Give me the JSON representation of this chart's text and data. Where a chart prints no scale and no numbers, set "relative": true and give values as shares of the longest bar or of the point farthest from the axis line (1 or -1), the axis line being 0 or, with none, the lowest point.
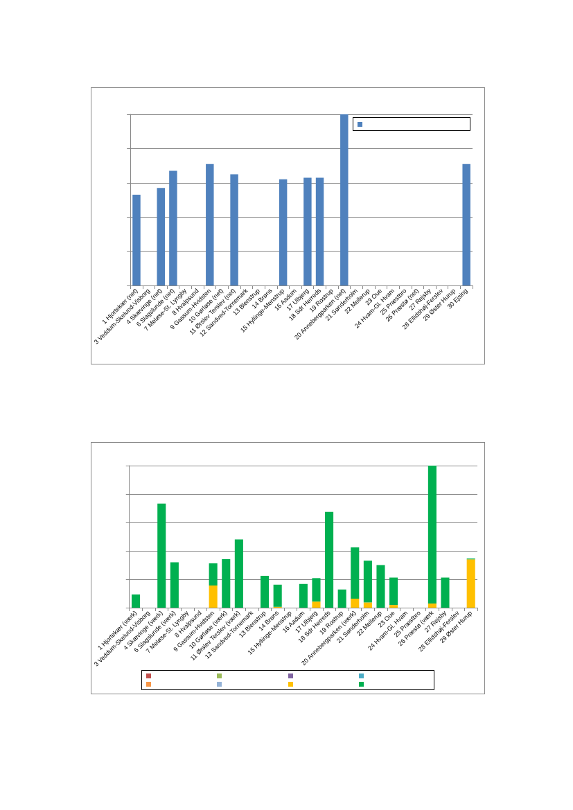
{
  "chart_data": [
    {
      "type": "bar",
      "relative": true,
      "grid": "y",
      "categories": [
        "1 Hjortekær (net)",
        "3 Veddum-Skelund-Visborg",
        "4 Skævinge (net)",
        "6 Slagslunde (net)",
        "7 Meløse-St. Lyngby",
        "8 Hvalpsund",
        "9 Gassum-Hvidsten",
        "10 Gørløse (net)",
        "11 Ørslev Terslev (net)",
        "12 Sandved-Tornemark",
        "13 Blenstrup",
        "14 Brøns",
        "15 Hyllinge-Menstrup",
        "16 Aadum",
        "17 Ulbjerg",
        "18 Sdr Herreds",
        "19 Rostrup",
        "20 Annebergparken (net)",
        "21 Sønderholm",
        "22 Mellerup",
        "23 Oue",
        "24 Hvam-Gl. Hvam",
        "25 Præstbro",
        "26 Præstø (net)",
        "27 Rejsby",
        "28 Ellidshøj-Ferslev",
        "29 Øster Hurup",
        "30 Ejsing"
      ],
      "series": [
        {
          "color": "#4f81bd",
          "values": [
            0.53,
            null,
            0.57,
            0.67,
            null,
            null,
            0.71,
            null,
            0.65,
            null,
            null,
            null,
            0.62,
            null,
            0.63,
            0.63,
            null,
            1,
            null,
            null,
            null,
            null,
            null,
            null,
            null,
            null,
            null,
            0.71
          ]
        }
      ]
    },
    {
      "type": "bar",
      "relative": true,
      "stacked": true,
      "grid": "y",
      "categories": [
        "1 Hjortekær (værk)",
        "3 Veddum-Skelund-Visborg",
        "4 Skævinge (værk)",
        "6 Slagslunde (værk)",
        "7 Meløse-St. Lyngby",
        "8 Hvalpsund",
        "9 Gassum-Hvidsten",
        "10 Gørløse (værk)",
        "11 Ørslev Terslev (værk)",
        "12 Sandved-Tornemark",
        "13 Blenstrup",
        "14 Brøns",
        "15 Hyllinge-Menstrup",
        "16 Aadum",
        "17 Ulbjerg",
        "18 Sdr Herreds",
        "19 Rostrup",
        "20 Annebergparken (værk)",
        "21 Sønderholm",
        "22 Mellerup",
        "23 Oue",
        "24 Hvam-Gl. Hvam",
        "25 Præstbro",
        "26 Præstø (værk",
        "27 Rejsby",
        "28 Ellidshøj-Ferslev",
        "29 Øster Hurup"
      ],
      "series": [
        {
          "color": "#c0504d",
          "values": [
            null,
            null,
            null,
            null,
            null,
            null,
            null,
            null,
            null,
            null,
            null,
            null,
            null,
            null,
            null,
            null,
            null,
            null,
            null,
            null,
            null,
            null,
            null,
            null,
            null,
            null,
            null
          ]
        },
        {
          "color": "#9bbb59",
          "values": [
            null,
            null,
            null,
            null,
            null,
            null,
            null,
            null,
            null,
            null,
            null,
            null,
            null,
            null,
            null,
            null,
            null,
            null,
            null,
            null,
            null,
            null,
            null,
            null,
            null,
            null,
            null
          ]
        },
        {
          "color": "#8064a2",
          "values": [
            null,
            null,
            null,
            null,
            null,
            null,
            null,
            null,
            null,
            null,
            null,
            null,
            null,
            null,
            null,
            null,
            null,
            null,
            null,
            null,
            null,
            null,
            null,
            null,
            null,
            null,
            null
          ]
        },
        {
          "color": "#4bacc6",
          "values": [
            null,
            null,
            null,
            null,
            null,
            null,
            null,
            null,
            null,
            null,
            null,
            null,
            null,
            null,
            null,
            null,
            null,
            null,
            null,
            null,
            null,
            null,
            null,
            null,
            null,
            null,
            null
          ]
        },
        {
          "color": "#f79646",
          "values": [
            null,
            null,
            null,
            null,
            null,
            null,
            null,
            null,
            null,
            null,
            null,
            null,
            null,
            null,
            null,
            null,
            null,
            null,
            null,
            null,
            null,
            null,
            null,
            null,
            null,
            null,
            null
          ]
        },
        {
          "color": "#95b3d7",
          "values": [
            null,
            null,
            null,
            null,
            null,
            null,
            null,
            null,
            null,
            null,
            null,
            null,
            null,
            null,
            null,
            null,
            null,
            null,
            null,
            null,
            null,
            null,
            null,
            null,
            null,
            null,
            null
          ]
        },
        {
          "color": "#ffc000",
          "values": [
            null,
            null,
            null,
            null,
            null,
            null,
            0.156,
            null,
            null,
            null,
            null,
            0.006,
            null,
            null,
            0.043,
            null,
            null,
            0.064,
            0.037,
            null,
            0.019,
            null,
            null,
            0.029,
            null,
            null,
            0.34
          ]
        },
        {
          "color": "#00b050",
          "values": [
            0.093,
            null,
            0.733,
            0.319,
            null,
            null,
            0.156,
            0.342,
            0.481,
            null,
            0.224,
            0.156,
            null,
            0.167,
            0.165,
            0.675,
            0.128,
            0.36,
            0.294,
            0.3,
            0.193,
            null,
            null,
            0.971,
            0.212,
            null,
            0.006
          ]
        }
      ]
    }
  ]
}
